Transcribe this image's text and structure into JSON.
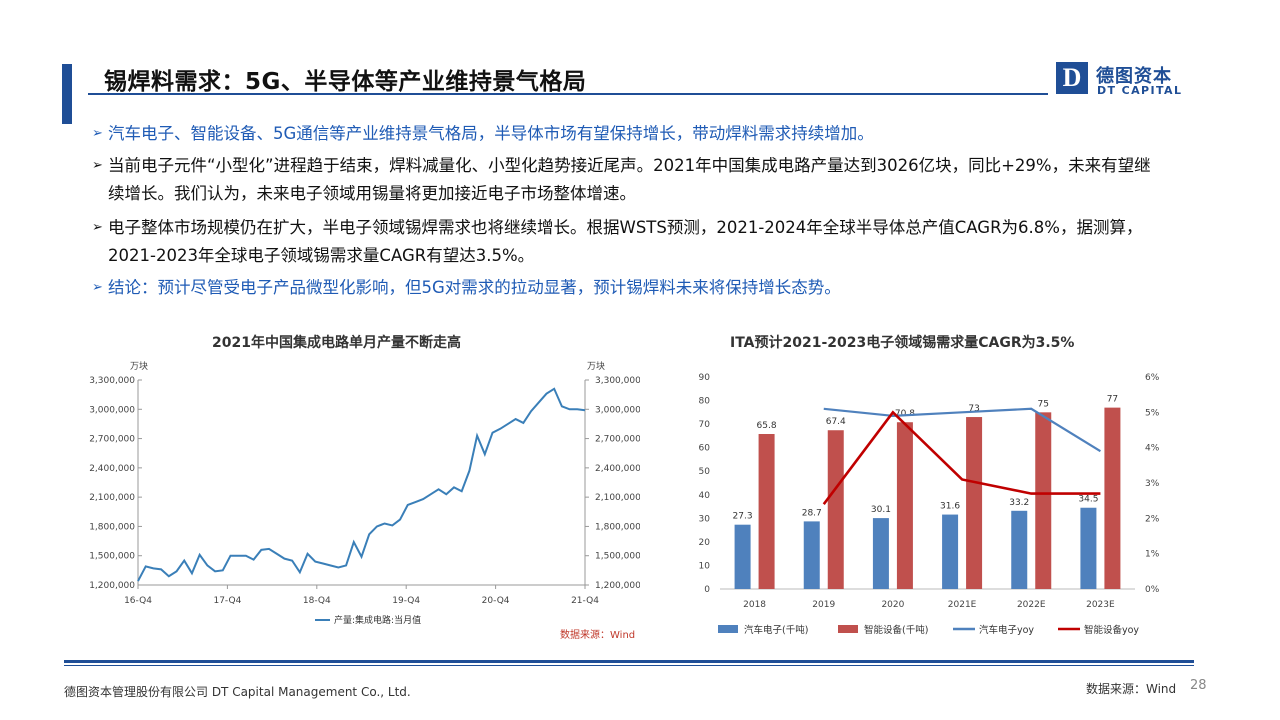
{
  "header": {
    "title": "锡焊料需求：5G、半导体等产业维持景气格局",
    "logo_mark": "D",
    "logo_cn": "德图资本",
    "logo_en": "DT CAPITAL"
  },
  "bullets": [
    "汽车电子、智能设备、5G通信等产业维持景气格局，半导体市场有望保持增长，带动焊料需求持续增加。",
    "当前电子元件“小型化”进程趋于结束，焊料减量化、小型化趋势接近尾声。2021年中国集成电路产量达到3026亿块，同比+29%，未来有望继续增长。我们认为，未来电子领域用锡量将更加接近电子市场整体增速。",
    "电子整体市场规模仍在扩大，半电子领域锡焊需求也将继续增长。根据WSTS预测，2021-2024年全球半导体总产值CAGR为6.8%，据测算，2021-2023年全球电子领域锡需求量CAGR有望达3.5%。",
    "结论：预计尽管受电子产品微型化影响，但5G对需求的拉动显著，预计锡焊料未来将保持增长态势。"
  ],
  "chart_data": [
    {
      "type": "line",
      "title": "2021年中国集成电路单月产量不断走高",
      "ylabel": "万块",
      "ylabel_right": "万块",
      "ylim": [
        1200000,
        3300000
      ],
      "yticks": [
        "1,200,000",
        "1,500,000",
        "1,800,000",
        "2,100,000",
        "2,400,000",
        "2,700,000",
        "3,000,000",
        "3,300,000"
      ],
      "xticks": [
        "16-Q4",
        "17-Q4",
        "18-Q4",
        "19-Q4",
        "20-Q4",
        "21-Q4"
      ],
      "series": [
        {
          "name": "产量:集成电路:当月值",
          "color": "#3a7fb8",
          "values": [
            1240000,
            1390000,
            1370000,
            1360000,
            1290000,
            1340000,
            1450000,
            1320000,
            1510000,
            1400000,
            1340000,
            1350000,
            1500000,
            1500000,
            1500000,
            1460000,
            1560000,
            1570000,
            1520000,
            1470000,
            1450000,
            1330000,
            1520000,
            1440000,
            1420000,
            1400000,
            1380000,
            1400000,
            1640000,
            1490000,
            1720000,
            1800000,
            1830000,
            1810000,
            1870000,
            2020000,
            2050000,
            2080000,
            2130000,
            2180000,
            2130000,
            2200000,
            2160000,
            2370000,
            2730000,
            2540000,
            2760000,
            2800000,
            2850000,
            2900000,
            2860000,
            2980000,
            3070000,
            3160000,
            3210000,
            3030000,
            3000000,
            3000000,
            2990000
          ]
        }
      ],
      "source": "数据来源：Wind"
    },
    {
      "type": "bar",
      "title": "ITA预计2021-2023电子领域锡需求量CAGR为3.5%",
      "categories": [
        "2018",
        "2019",
        "2020",
        "2021E",
        "2022E",
        "2023E"
      ],
      "ylim": [
        0,
        90
      ],
      "yticks": [
        0,
        10,
        20,
        30,
        40,
        50,
        60,
        70,
        80,
        90
      ],
      "y2lim": [
        0,
        6
      ],
      "y2ticks": [
        "0%",
        "1%",
        "2%",
        "3%",
        "4%",
        "5%",
        "6%"
      ],
      "series": [
        {
          "name": "汽车电子(千吨)",
          "kind": "bar",
          "color": "#4f81bd",
          "values": [
            27.3,
            28.7,
            30.1,
            31.6,
            33.2,
            34.5
          ]
        },
        {
          "name": "智能设备(千吨)",
          "kind": "bar",
          "color": "#c0504d",
          "values": [
            65.8,
            67.4,
            70.8,
            73,
            75,
            77
          ]
        },
        {
          "name": "汽车电子yoy",
          "kind": "line",
          "axis": "right",
          "color": "#4f81bd",
          "values": [
            null,
            5.1,
            4.9,
            5.0,
            5.1,
            3.9
          ]
        },
        {
          "name": "智能设备yoy",
          "kind": "line",
          "axis": "right",
          "color": "#c00000",
          "values": [
            null,
            2.4,
            5.0,
            3.1,
            2.7,
            2.7
          ]
        }
      ]
    }
  ],
  "footer": {
    "company": "德图资本管理股份有限公司  DT Capital Management  Co., Ltd.",
    "source": "数据来源：Wind",
    "page": "28"
  }
}
